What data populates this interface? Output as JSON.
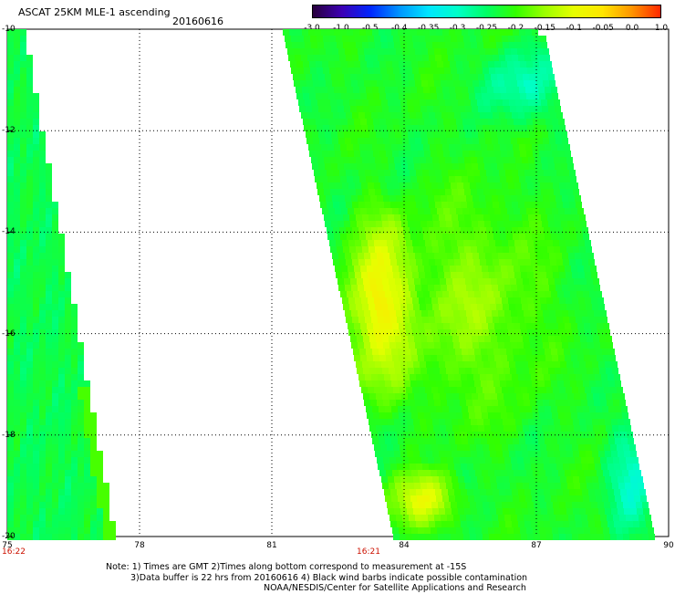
{
  "header": {
    "title": "ASCAT 25KM MLE-1 ascending",
    "date": "20160616"
  },
  "colorbar": {
    "ticks": [
      "-3.0",
      "-1.0",
      "-0.5",
      "-0.4",
      "-0.35",
      "-0.3",
      "-0.25",
      "-0.2",
      "-0.15",
      "-0.1",
      "-0.05",
      "0.0",
      "1.0"
    ],
    "colors": [
      "#28003c",
      "#3c00b4",
      "#0028ff",
      "#0096ff",
      "#00e6ff",
      "#00ffc8",
      "#00ff64",
      "#32ff00",
      "#9bff00",
      "#e6ff00",
      "#ffe600",
      "#ff9600",
      "#ff2800"
    ]
  },
  "map": {
    "lat_labels": [
      "-10",
      "-12",
      "-14",
      "-16",
      "-18",
      "-20"
    ],
    "lon_labels": [
      "75",
      "78",
      "81",
      "84",
      "87",
      "90"
    ],
    "grid": "dotted",
    "swath_times": [
      "16:22",
      "16:21"
    ]
  },
  "notes": {
    "line1": "Note: 1) Times are GMT 2)Times along bottom correspond to measurement at -15S",
    "line2": "3)Data buffer is 22 hrs from 20160616 4) Black wind barbs indicate possible contamination",
    "line3": "NOAA/NESDIS/Center for Satellite Applications and Research"
  }
}
